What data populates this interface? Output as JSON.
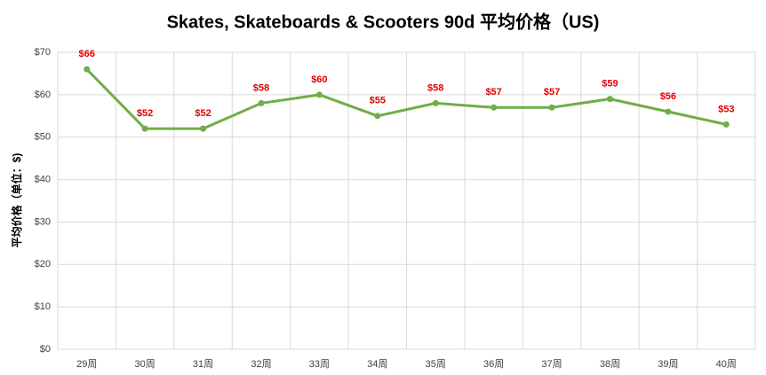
{
  "chart_data": {
    "type": "line",
    "title": "Skates, Skateboards & Scooters 90d 平均价格（US)",
    "y_label": "平均价格（单位：$)",
    "categories": [
      "29周",
      "30周",
      "31周",
      "32周",
      "33周",
      "34周",
      "35周",
      "36周",
      "37周",
      "38周",
      "39周",
      "40周"
    ],
    "series": [
      {
        "name": "平均价格",
        "color": "#70ad47",
        "values": [
          66,
          52,
          52,
          58,
          60,
          55,
          58,
          57,
          57,
          59,
          56,
          53
        ],
        "value_labels": [
          "$66",
          "$52",
          "$52",
          "$58",
          "$60",
          "$55",
          "$58",
          "$57",
          "$57",
          "$59",
          "$56",
          "$53"
        ]
      }
    ],
    "label_color": "#e00000",
    "ylim": [
      0,
      70
    ],
    "yticks": [
      {
        "value": 0,
        "label": "$0"
      },
      {
        "value": 10,
        "label": "$10"
      },
      {
        "value": 20,
        "label": "$20"
      },
      {
        "value": 30,
        "label": "$30"
      },
      {
        "value": 40,
        "label": "$40"
      },
      {
        "value": 50,
        "label": "$50"
      },
      {
        "value": 60,
        "label": "$60"
      },
      {
        "value": 70,
        "label": "$70"
      }
    ],
    "grid": true
  }
}
